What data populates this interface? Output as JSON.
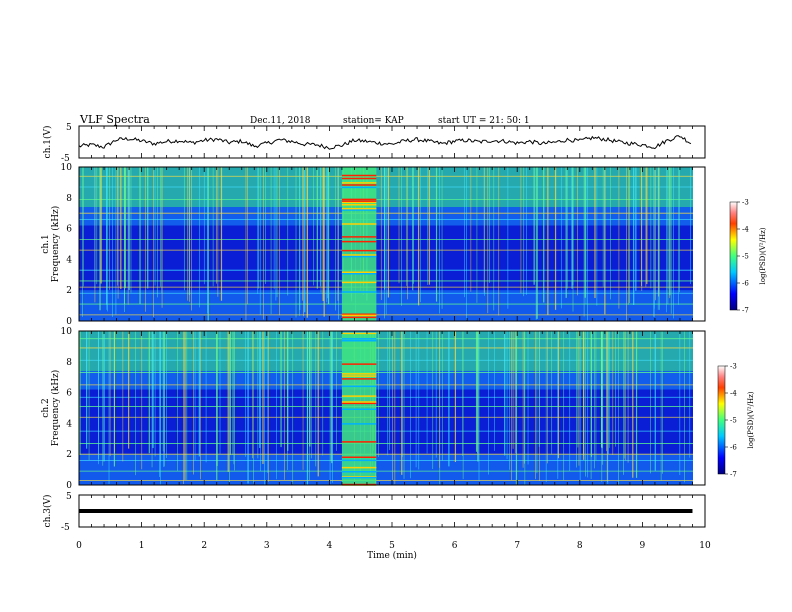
{
  "header": {
    "title": "VLF Spectra",
    "date": "Dec.11, 2018",
    "station": "station= KAP",
    "start": "start  UT =   21: 50: 1"
  },
  "chart_data": [
    {
      "type": "line",
      "panel": "ch1-waveform",
      "ylabel": "ch.1(V)",
      "yticks": [
        "5",
        "-5"
      ],
      "ylim": [
        -5,
        5
      ],
      "xlim": [
        0,
        10
      ],
      "series": [
        {
          "x": [
            0.0,
            0.2,
            0.4,
            0.6,
            0.8,
            1.0,
            1.2,
            1.4,
            1.6,
            1.8,
            2.0,
            2.2,
            2.4,
            2.6,
            2.8,
            3.0,
            3.2,
            3.4,
            3.6,
            3.8,
            4.0,
            4.2,
            4.4,
            4.6,
            4.8,
            5.0,
            5.2,
            5.4,
            5.6,
            5.8,
            6.0,
            6.2,
            6.4,
            6.6,
            6.8,
            7.0,
            7.2,
            7.4,
            7.6,
            7.8,
            8.0,
            8.2,
            8.4,
            8.6,
            8.8,
            9.0,
            9.2,
            9.4,
            9.6,
            9.8
          ],
          "values": [
            -1.5,
            -1.0,
            -1.8,
            0.8,
            1.2,
            0.4,
            -0.6,
            0.2,
            0.5,
            -0.3,
            0.6,
            1.0,
            -0.2,
            0.3,
            -1.5,
            -0.5,
            0.8,
            0.2,
            -0.8,
            -1.0,
            -2.0,
            -1.2,
            0.6,
            0.2,
            -0.4,
            -0.8,
            0.4,
            0.9,
            0.2,
            -0.6,
            0.3,
            0.6,
            0.0,
            0.5,
            0.3,
            -0.4,
            0.2,
            -0.6,
            -0.1,
            0.8,
            0.4,
            1.5,
            1.0,
            0.1,
            -0.5,
            -1.0,
            -1.8,
            0.6,
            2.2,
            -0.8
          ]
        }
      ]
    },
    {
      "type": "heatmap",
      "panel": "ch1-spectrogram",
      "ylabel": "ch.1",
      "ylabel2": "Frequency (kHz)",
      "yticks": [
        "0",
        "2",
        "4",
        "6",
        "8",
        "10"
      ],
      "ylim": [
        0,
        10
      ],
      "xlim": [
        0,
        10
      ]
    },
    {
      "type": "heatmap",
      "panel": "ch2-spectrogram",
      "ylabel": "ch.2",
      "ylabel2": "Frequency (kHz)",
      "yticks": [
        "0",
        "2",
        "4",
        "6",
        "8",
        "10"
      ],
      "ylim": [
        0,
        10
      ],
      "xlim": [
        0,
        10
      ]
    },
    {
      "type": "line",
      "panel": "ch3-waveform",
      "ylabel": "ch.3(V)",
      "yticks": [
        "5",
        "-5"
      ],
      "ylim": [
        -5,
        5
      ],
      "xlim": [
        0,
        10
      ],
      "series": [
        {
          "x": [
            0.0,
            9.8
          ],
          "values": [
            0.0,
            0.0
          ]
        }
      ]
    }
  ],
  "colorbar": {
    "label": "log(PSD)(V²/Hz)",
    "ticks": [
      "-3",
      "-4",
      "-5",
      "-6",
      "-7"
    ],
    "range": [
      -7,
      -3
    ],
    "colors": [
      "#00007f",
      "#0000ff",
      "#0080ff",
      "#00ffff",
      "#80ff80",
      "#ffff00",
      "#ff8000",
      "#ff0000",
      "#ffffff"
    ]
  },
  "xaxis": {
    "label": "Time  (min)",
    "ticks": [
      "0",
      "1",
      "2",
      "3",
      "4",
      "5",
      "6",
      "7",
      "8",
      "9",
      "10"
    ]
  },
  "colors": {
    "noise_band": "#00ff80",
    "burst": "#ff0000",
    "line": "#000000"
  }
}
